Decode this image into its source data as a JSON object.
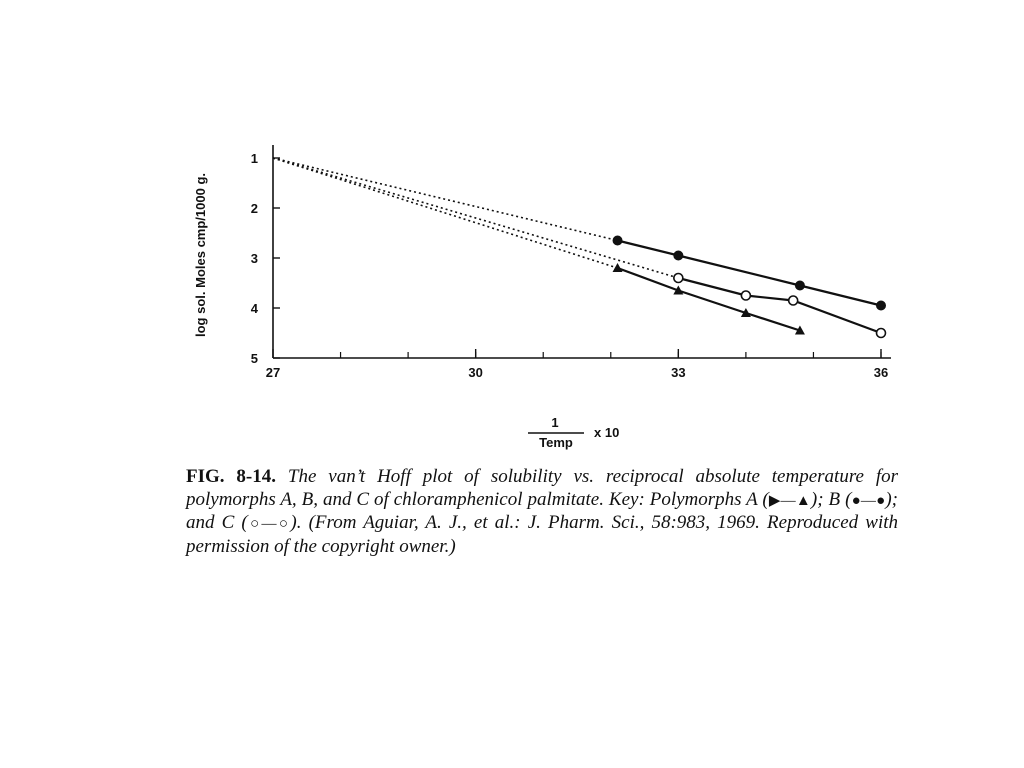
{
  "chart_data": {
    "type": "line",
    "x_tick_labels": [
      "27",
      "30",
      "33",
      "36"
    ],
    "y_tick_labels": [
      "1",
      "2",
      "3",
      "4",
      "5"
    ],
    "xlim": [
      27,
      36
    ],
    "ylim": [
      1,
      5
    ],
    "y_inverted": true,
    "ylabel": "log sol. Moles cmp/1000 g.",
    "xlabel": {
      "numerator": "1",
      "denominator": "Temp",
      "multiplier": "x 10"
    },
    "extrapolation": {
      "style": "dotted",
      "converge_point": [
        27,
        1
      ]
    },
    "series": [
      {
        "marker": "triangle",
        "fill": "filled",
        "color": "#111111",
        "points": [
          [
            32.1,
            3.2
          ],
          [
            33.0,
            3.65
          ],
          [
            34.0,
            4.1
          ],
          [
            34.8,
            4.45
          ]
        ]
      },
      {
        "marker": "circle",
        "fill": "filled",
        "color": "#111111",
        "points": [
          [
            32.1,
            2.65
          ],
          [
            33.0,
            2.95
          ],
          [
            34.8,
            3.55
          ],
          [
            36.0,
            3.95
          ]
        ]
      },
      {
        "marker": "circle",
        "fill": "open",
        "color": "#111111",
        "points": [
          [
            33.0,
            3.4
          ],
          [
            34.0,
            3.75
          ],
          [
            34.7,
            3.85
          ],
          [
            36.0,
            4.5
          ]
        ]
      }
    ]
  },
  "caption": {
    "label": "FIG. 8-14.",
    "text_part1": " The van’t Hoff plot of solubility vs. reciprocal absolute temperature for polymorphs A, B, and C of chloramphenicol palmitate. Key: Polymorphs A (",
    "key_a": "▶—▲",
    "text_part2": "); B (",
    "key_b": "●—●",
    "text_part3": "); and C (",
    "key_c": "○—○",
    "text_part4": "). (From Aguiar, A. J., et al.: J. Pharm. Sci., 58:983, 1969. Reproduced with permission of the copyright owner.)"
  }
}
